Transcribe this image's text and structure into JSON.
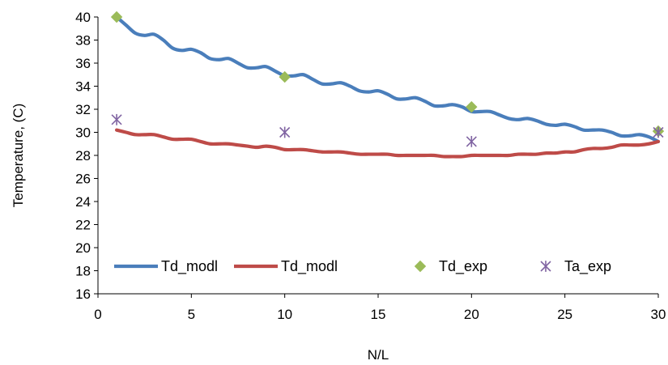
{
  "chart_data": {
    "type": "line",
    "xlabel": "N/L",
    "ylabel": "Temperature, (C)",
    "xlim": [
      0,
      30
    ],
    "ylim": [
      16,
      40
    ],
    "xticks": [
      0,
      5,
      10,
      15,
      20,
      25,
      30
    ],
    "yticks": [
      16,
      18,
      20,
      22,
      24,
      26,
      28,
      30,
      32,
      34,
      36,
      38,
      40
    ],
    "grid": false,
    "legend": "bottom-inside",
    "series": [
      {
        "name": "Td_modl",
        "kind": "line",
        "color": "#4a7ebb",
        "x": [
          1,
          1.5,
          2,
          2.5,
          3,
          3.5,
          4,
          4.5,
          5,
          5.5,
          6,
          6.5,
          7,
          7.5,
          8,
          8.5,
          9,
          9.5,
          10,
          10.5,
          11,
          11.5,
          12,
          12.5,
          13,
          13.5,
          14,
          14.5,
          15,
          15.5,
          16,
          16.5,
          17,
          17.5,
          18,
          18.5,
          19,
          19.5,
          20,
          20.5,
          21,
          21.5,
          22,
          22.5,
          23,
          23.5,
          24,
          24.5,
          25,
          25.5,
          26,
          26.5,
          27,
          27.5,
          28,
          28.5,
          29,
          29.5,
          30
        ],
        "y": [
          40.0,
          39.3,
          38.6,
          38.4,
          38.5,
          38.0,
          37.3,
          37.1,
          37.2,
          36.9,
          36.4,
          36.3,
          36.4,
          36.0,
          35.6,
          35.6,
          35.7,
          35.3,
          34.9,
          34.9,
          35.0,
          34.6,
          34.2,
          34.2,
          34.3,
          34.0,
          33.6,
          33.5,
          33.6,
          33.3,
          32.9,
          32.9,
          33.0,
          32.7,
          32.3,
          32.3,
          32.4,
          32.2,
          31.8,
          31.8,
          31.8,
          31.5,
          31.2,
          31.1,
          31.2,
          31.0,
          30.7,
          30.6,
          30.7,
          30.5,
          30.2,
          30.2,
          30.2,
          30.0,
          29.7,
          29.7,
          29.8,
          29.6,
          29.2
        ]
      },
      {
        "name": "Td_modl",
        "kind": "line",
        "color": "#be4b48",
        "x": [
          1,
          1.5,
          2,
          2.5,
          3,
          3.5,
          4,
          4.5,
          5,
          5.5,
          6,
          6.5,
          7,
          7.5,
          8,
          8.5,
          9,
          9.5,
          10,
          10.5,
          11,
          11.5,
          12,
          12.5,
          13,
          13.5,
          14,
          14.5,
          15,
          15.5,
          16,
          16.5,
          17,
          17.5,
          18,
          18.5,
          19,
          19.5,
          20,
          20.5,
          21,
          21.5,
          22,
          22.5,
          23,
          23.5,
          24,
          24.5,
          25,
          25.5,
          26,
          26.5,
          27,
          27.5,
          28,
          28.5,
          29,
          29.5,
          30
        ],
        "y": [
          30.2,
          30.0,
          29.8,
          29.8,
          29.8,
          29.6,
          29.4,
          29.4,
          29.4,
          29.2,
          29.0,
          29.0,
          29.0,
          28.9,
          28.8,
          28.7,
          28.8,
          28.7,
          28.5,
          28.5,
          28.5,
          28.4,
          28.3,
          28.3,
          28.3,
          28.2,
          28.1,
          28.1,
          28.1,
          28.1,
          28.0,
          28.0,
          28.0,
          28.0,
          28.0,
          27.9,
          27.9,
          27.9,
          28.0,
          28.0,
          28.0,
          28.0,
          28.0,
          28.1,
          28.1,
          28.1,
          28.2,
          28.2,
          28.3,
          28.3,
          28.5,
          28.6,
          28.6,
          28.7,
          28.9,
          28.9,
          28.9,
          29.0,
          29.2
        ]
      },
      {
        "name": "Td_exp",
        "kind": "scatter",
        "marker": "diamond",
        "color": "#9bbb59",
        "x": [
          1,
          10,
          20,
          30
        ],
        "y": [
          40.0,
          34.8,
          32.2,
          30.1
        ]
      },
      {
        "name": "Ta_exp",
        "kind": "scatter",
        "marker": "asterisk",
        "color": "#8064a2",
        "x": [
          1,
          10,
          20,
          30
        ],
        "y": [
          31.1,
          30.0,
          29.2,
          30.0
        ]
      }
    ]
  }
}
